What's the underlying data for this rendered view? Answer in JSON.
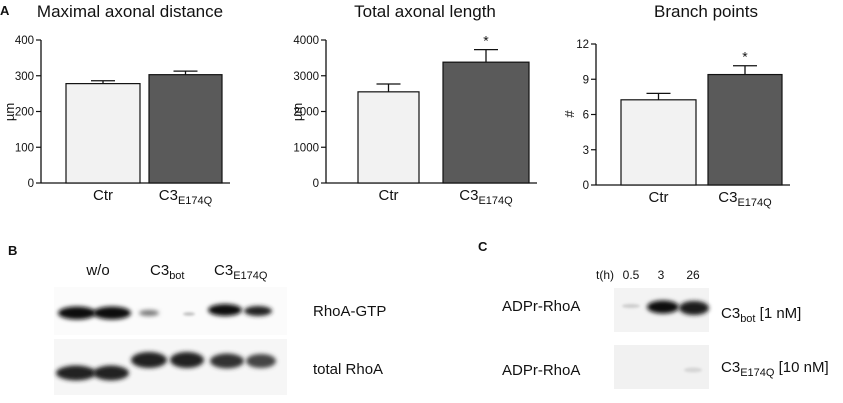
{
  "panel_labels": {
    "a": "A",
    "b": "B",
    "c": "C"
  },
  "chart_data": [
    {
      "type": "bar",
      "title": "Maximal axonal distance",
      "ylabel": "µm",
      "ylim": [
        0,
        400
      ],
      "yticks": [
        "0",
        "100",
        "200",
        "300",
        "400"
      ],
      "categories": [
        "Ctr",
        "C3E174Q"
      ],
      "category_labels": [
        {
          "main": "Ctr",
          "sub": ""
        },
        {
          "main": "C3",
          "sub": "E174Q"
        }
      ],
      "values": [
        278,
        303
      ],
      "errors": [
        8,
        10
      ],
      "significance": [
        "",
        ""
      ],
      "bar_colors": [
        "#f2f2f2",
        "#5a5a5a"
      ]
    },
    {
      "type": "bar",
      "title": "Total axonal length",
      "ylabel": "µm",
      "ylim": [
        0,
        4000
      ],
      "yticks": [
        "0",
        "1000",
        "2000",
        "3000",
        "4000"
      ],
      "categories": [
        "Ctr",
        "C3E174Q"
      ],
      "category_labels": [
        {
          "main": "Ctr",
          "sub": ""
        },
        {
          "main": "C3",
          "sub": "E174Q"
        }
      ],
      "values": [
        2550,
        3380
      ],
      "errors": [
        220,
        350
      ],
      "significance": [
        "",
        "*"
      ],
      "bar_colors": [
        "#f2f2f2",
        "#5a5a5a"
      ]
    },
    {
      "type": "bar",
      "title": "Branch points",
      "ylabel": "#",
      "ylim": [
        0,
        12
      ],
      "yticks": [
        "0",
        "3",
        "6",
        "9",
        "12"
      ],
      "categories": [
        "Ctr",
        "C3E174Q"
      ],
      "category_labels": [
        {
          "main": "Ctr",
          "sub": ""
        },
        {
          "main": "C3",
          "sub": "E174Q"
        }
      ],
      "values": [
        7.25,
        9.4
      ],
      "errors": [
        0.55,
        0.75
      ],
      "significance": [
        "",
        "*"
      ],
      "bar_colors": [
        "#f2f2f2",
        "#5a5a5a"
      ]
    }
  ],
  "blot_b": {
    "lane_groups": [
      {
        "main": "w/o",
        "sub": ""
      },
      {
        "main": "C3",
        "sub": "bot"
      },
      {
        "main": "C3",
        "sub": "E174Q"
      }
    ],
    "rows": [
      "RhoA-GTP",
      "total RhoA"
    ]
  },
  "blot_c": {
    "time_label": "t(h)",
    "times": [
      "0.5",
      "3",
      "26"
    ],
    "rows": [
      {
        "left": "ADPr-RhoA",
        "toxin": "C3",
        "sub": "bot",
        "conc": " [1 nM]"
      },
      {
        "left": "ADPr-RhoA",
        "toxin": "C3",
        "sub": "E174Q",
        "conc": " [10 nM]"
      }
    ]
  }
}
